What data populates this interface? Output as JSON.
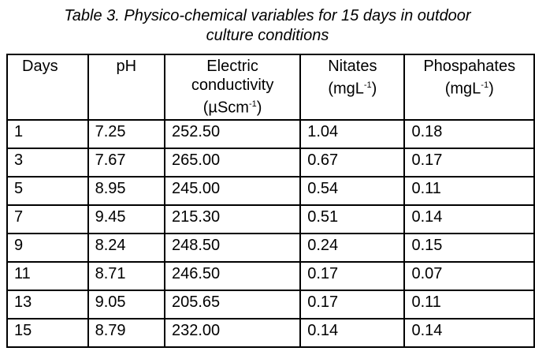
{
  "caption": {
    "line1": "Table 3. Physico-chemical variables for 15 days in outdoor",
    "line2": "culture conditions"
  },
  "headers": {
    "days": "Days",
    "ph": "pH",
    "ec_line1": "Electric",
    "ec_line2": "conductivity",
    "ec_unit": "(µScm",
    "ec_sup": "-1",
    "ec_close": ")",
    "nit_line1": "Nitates",
    "nit_unit": "(mgL",
    "nit_sup": "-1",
    "nit_close": ")",
    "pho_line1": "Phospahates",
    "pho_unit": "(mgL",
    "pho_sup": "-1",
    "pho_close": ")"
  },
  "rows": [
    [
      "1",
      "7.25",
      "252.50",
      "1.04",
      "0.18"
    ],
    [
      "3",
      "7.67",
      "265.00",
      "0.67",
      "0.17"
    ],
    [
      "5",
      "8.95",
      "245.00",
      "0.54",
      "0.11"
    ],
    [
      "7",
      "9.45",
      "215.30",
      "0.51",
      "0.14"
    ],
    [
      "9",
      "8.24",
      "248.50",
      "0.24",
      "0.15"
    ],
    [
      "11",
      "8.71",
      "246.50",
      "0.17",
      "0.07"
    ],
    [
      "13",
      "9.05",
      "205.65",
      "0.17",
      "0.11"
    ],
    [
      "15",
      "8.79",
      "232.00",
      "0.14",
      "0.14"
    ]
  ]
}
